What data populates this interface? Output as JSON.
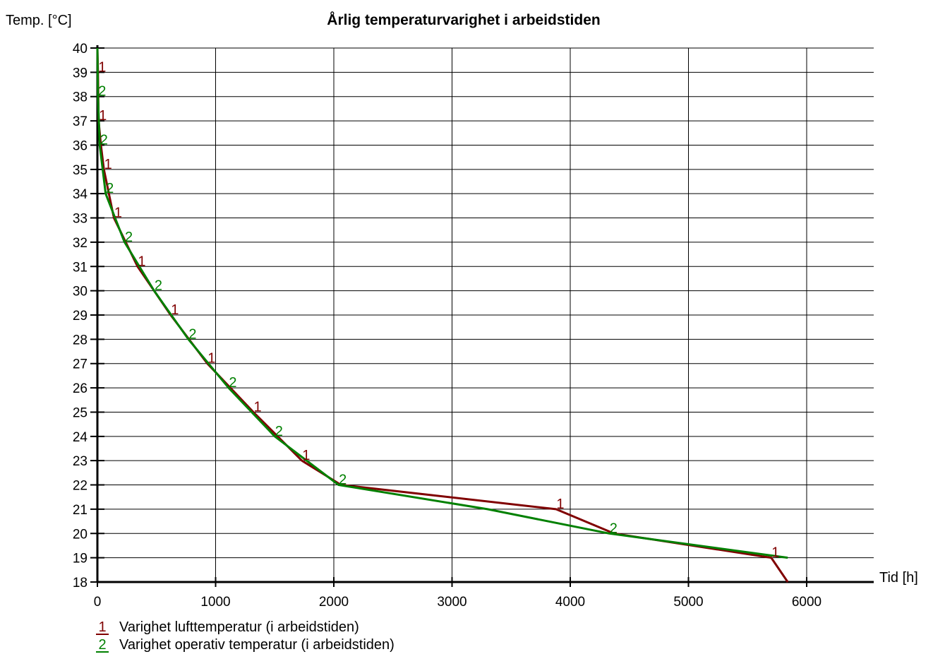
{
  "chart_data": {
    "type": "line",
    "title": "Årlig temperaturvarighet i arbeidstiden",
    "ylabel": "Temp. [°C]",
    "xlabel": "Tid [h]",
    "xlim": [
      0,
      6500
    ],
    "ylim": [
      18,
      40
    ],
    "xticks": [
      0,
      1000,
      2000,
      3000,
      4000,
      5000,
      6000
    ],
    "yticks": [
      18,
      19,
      20,
      21,
      22,
      23,
      24,
      25,
      26,
      27,
      28,
      29,
      30,
      31,
      32,
      33,
      34,
      35,
      36,
      37,
      38,
      39,
      40
    ],
    "grid": true,
    "legend_position": "bottom-left",
    "series": [
      {
        "name": "Varighet lufttemperatur (i arbeidstiden)",
        "marker": "1",
        "color": "#800000",
        "x": [
          0,
          5,
          10,
          30,
          55,
          140,
          340,
          620,
          930,
          1320,
          1730,
          2060,
          3880,
          4370,
          5700,
          5840
        ],
        "y": [
          40,
          39,
          37,
          36,
          35,
          33,
          31,
          29,
          27,
          25,
          23,
          22,
          21,
          20,
          19,
          18
        ],
        "marker_x": [
          5,
          10,
          55,
          140,
          340,
          620,
          930,
          1320,
          1730,
          3880,
          5700
        ]
      },
      {
        "name": "Varighet operativ temperatur (i arbeidstiden)",
        "marker": "2",
        "color": "#008000",
        "x": [
          0,
          5,
          20,
          70,
          230,
          480,
          770,
          1110,
          1500,
          2040,
          3300,
          4330,
          5840
        ],
        "y": [
          40,
          38,
          36,
          34,
          32,
          30,
          28,
          26,
          24,
          22,
          21,
          20,
          19
        ],
        "marker_x": [
          5,
          20,
          70,
          230,
          480,
          770,
          1110,
          1500,
          2040,
          4330
        ]
      }
    ]
  }
}
